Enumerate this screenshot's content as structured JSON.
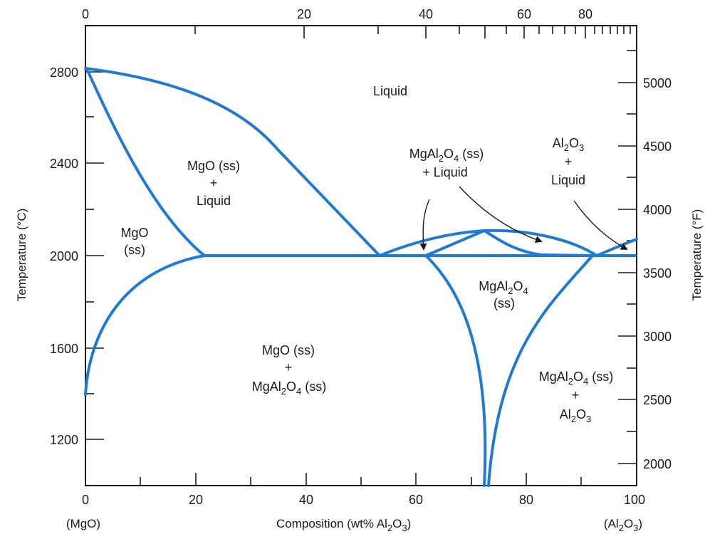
{
  "axes": {
    "bottom_ticks": [
      "0",
      "20",
      "40",
      "60",
      "80",
      "100"
    ],
    "top_ticks": [
      "0",
      "20",
      "40",
      "60",
      "80"
    ],
    "left_ticks": [
      "1200",
      "1600",
      "2000",
      "2400",
      "2800"
    ],
    "right_ticks": [
      "2000",
      "2500",
      "3000",
      "3500",
      "4000",
      "4500",
      "5000"
    ],
    "left_title": "Temperature (°C)",
    "right_title": "Temperature (°F)",
    "x_title_main": "Composition (wt% Al",
    "x_title_sub": "2",
    "x_title_mid": "O",
    "x_title_sub2": "3",
    "x_title_end": ")",
    "left_end_label": "(MgO)",
    "right_end": {
      "a": "(Al",
      "s1": "2",
      "b": "O",
      "s2": "3",
      "c": ")"
    }
  },
  "regions": {
    "liquid": "Liquid",
    "mgo_ss_liquid": {
      "l1": "MgO (ss)",
      "l2": "+",
      "l3": "Liquid"
    },
    "mgo_ss": {
      "l1": "MgO",
      "l2": "(ss)"
    },
    "spinel_liquid": {
      "a": "MgAl",
      "s1": "2",
      "b": "O",
      "s2": "4",
      "c": " (ss)",
      "l2": "+ Liquid"
    },
    "alumina_liquid": {
      "a": "Al",
      "s1": "2",
      "b": "O",
      "s2": "3",
      "l2": "+",
      "l3": "Liquid"
    },
    "spinel_ss": {
      "a": "MgAl",
      "s1": "2",
      "b": "O",
      "s2": "4",
      "l2": "(ss)"
    },
    "mgo_spinel": {
      "l1": "MgO (ss)",
      "l2": "+",
      "a": "MgAl",
      "s1": "2",
      "b": "O",
      "s2": "4",
      "c": " (ss)"
    },
    "spinel_alumina": {
      "a": "MgAl",
      "s1": "2",
      "b": "O",
      "s2": "4",
      "c": " (ss)",
      "l2": "+",
      "d": "Al",
      "s3": "2",
      "e": "O",
      "s4": "3"
    }
  },
  "colors": {
    "phase_line": "#1f7ad6",
    "text": "#1a1a1a"
  }
}
